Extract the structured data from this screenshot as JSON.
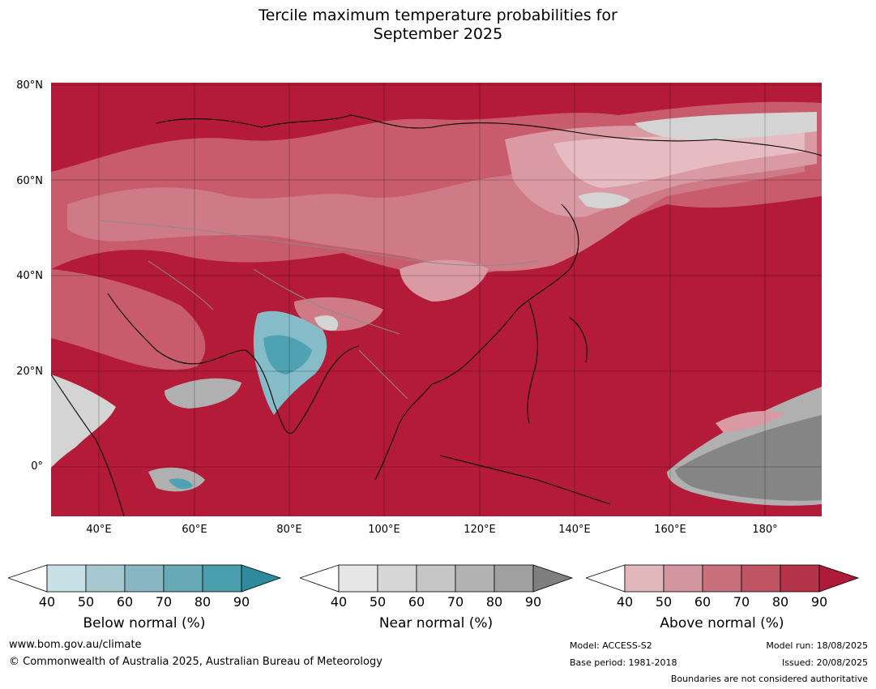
{
  "title": {
    "line1": "Tercile maximum temperature probabilities for",
    "line2": "September 2025"
  },
  "map": {
    "lat_labels": [
      "80°N",
      "60°N",
      "40°N",
      "20°N",
      "0°"
    ],
    "lon_labels": [
      "40°E",
      "60°E",
      "80°E",
      "100°E",
      "120°E",
      "140°E",
      "160°E",
      "180°"
    ],
    "colors": {
      "above_90": "#b31b38",
      "above_80": "#bf3a50",
      "above_70": "#c85c6c",
      "above_60": "#cf7b87",
      "above_50": "#d99aa3",
      "above_40": "#e6bcc2",
      "near_90": "#858585",
      "near_70": "#b0b0b0",
      "near_50": "#d4d4d4",
      "below_80": "#4fa2b2",
      "below_60": "#86bcc7",
      "ocean": "#b31b38"
    }
  },
  "legends": [
    {
      "name": "below",
      "title": "Below normal (%)",
      "ticks": [
        "40",
        "50",
        "60",
        "70",
        "80",
        "90"
      ],
      "colors": [
        "#c8e1e7",
        "#a6c9d1",
        "#88b6c2",
        "#68a9b6",
        "#4a9eae",
        "#2e8a9d"
      ]
    },
    {
      "name": "near",
      "title": "Near normal (%)",
      "ticks": [
        "40",
        "50",
        "60",
        "70",
        "80",
        "90"
      ],
      "colors": [
        "#e6e6e6",
        "#d6d6d6",
        "#c6c6c6",
        "#b3b3b3",
        "#a0a0a0",
        "#7f7f7f"
      ]
    },
    {
      "name": "above",
      "title": "Above normal (%)",
      "ticks": [
        "40",
        "50",
        "60",
        "70",
        "80",
        "90"
      ],
      "colors": [
        "#e1b7bc",
        "#d4969e",
        "#c8707c",
        "#bf5563",
        "#b5344a",
        "#b01a3a"
      ]
    }
  ],
  "footer": {
    "website": "www.bom.gov.au/climate",
    "copyright": "© Commonwealth of Australia 2025, Australian Bureau of Meteorology",
    "model": "Model: ACCESS-S2",
    "base_period": "Base period: 1981-2018",
    "model_run": "Model run: 18/08/2025",
    "issued": "Issued: 20/08/2025",
    "disclaimer": "Boundaries are not considered authoritative"
  }
}
